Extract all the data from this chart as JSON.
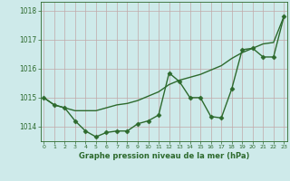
{
  "x": [
    0,
    1,
    2,
    3,
    4,
    5,
    6,
    7,
    8,
    9,
    10,
    11,
    12,
    13,
    14,
    15,
    16,
    17,
    18,
    19,
    20,
    21,
    22,
    23
  ],
  "pressure": [
    1015.0,
    1014.75,
    1014.65,
    1014.2,
    1013.85,
    1013.65,
    1013.8,
    1013.85,
    1013.85,
    1014.1,
    1014.2,
    1014.4,
    1015.85,
    1015.55,
    1015.0,
    1015.0,
    1014.35,
    1014.3,
    1015.3,
    1016.65,
    1016.7,
    1016.4,
    1016.4,
    1017.8
  ],
  "trend": [
    1015.0,
    1014.75,
    1014.65,
    1014.55,
    1014.55,
    1014.55,
    1014.65,
    1014.75,
    1014.8,
    1014.9,
    1015.05,
    1015.2,
    1015.45,
    1015.6,
    1015.7,
    1015.8,
    1015.95,
    1016.1,
    1016.35,
    1016.55,
    1016.7,
    1016.85,
    1016.9,
    1017.8
  ],
  "ylim": [
    1013.5,
    1018.3
  ],
  "yticks": [
    1014,
    1015,
    1016,
    1017,
    1018
  ],
  "xlim": [
    -0.3,
    23.3
  ],
  "line_color": "#2d6a2d",
  "bg_color": "#ceeaea",
  "grid_color": "#c0a8a8",
  "xlabel": "Graphe pression niveau de la mer (hPa)",
  "marker": "D",
  "marker_size": 2.5,
  "linewidth": 1.0
}
